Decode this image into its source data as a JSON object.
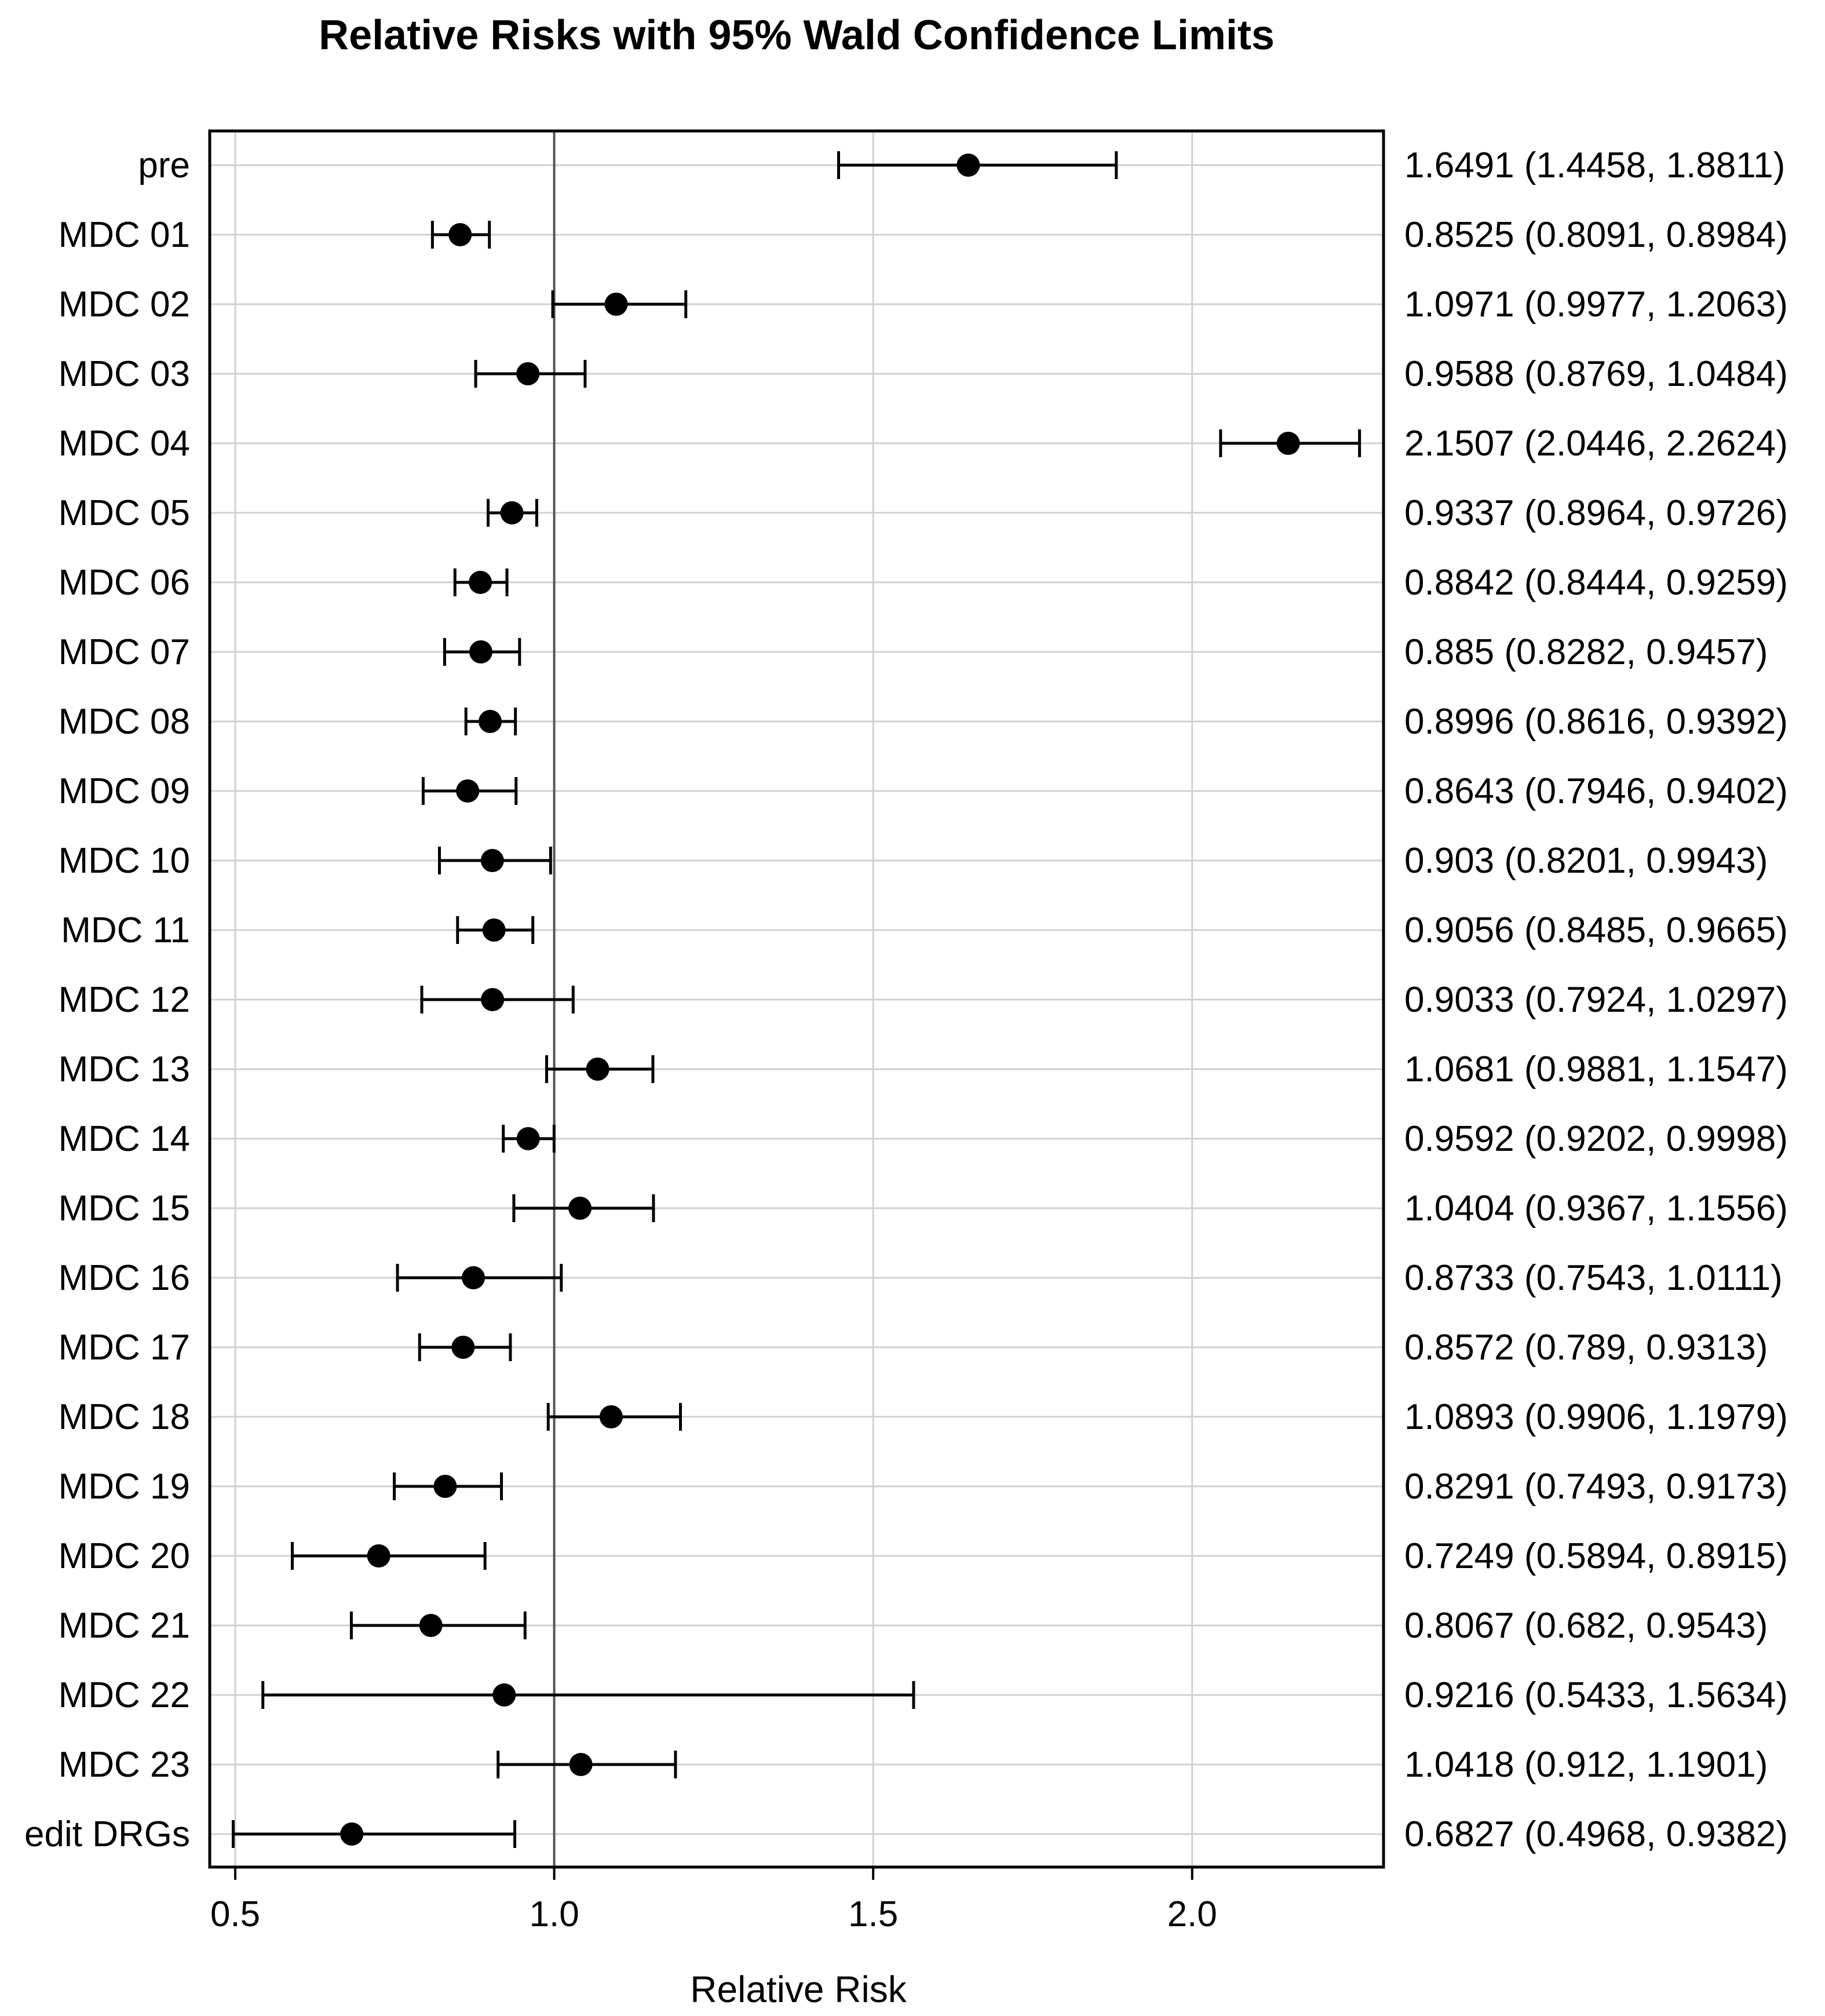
{
  "chart_data": {
    "type": "forest",
    "title": "Relative Risks with 95% Wald Confidence Limits",
    "xlabel": "Relative Risk",
    "ylabel": "",
    "xlim": [
      0.46,
      2.3
    ],
    "xticks": [
      0.5,
      1.0,
      1.5,
      2.0
    ],
    "xtick_labels": [
      "0.5",
      "1.0",
      "1.5",
      "2.0"
    ],
    "reference_line": 1.0,
    "grid": true,
    "rows": [
      {
        "label": "pre",
        "estimate": 1.6491,
        "lower": 1.4458,
        "upper": 1.8811,
        "text": "1.6491 (1.4458, 1.8811)"
      },
      {
        "label": "MDC 01",
        "estimate": 0.8525,
        "lower": 0.8091,
        "upper": 0.8984,
        "text": "0.8525 (0.8091, 0.8984)"
      },
      {
        "label": "MDC 02",
        "estimate": 1.0971,
        "lower": 0.9977,
        "upper": 1.2063,
        "text": "1.0971 (0.9977, 1.2063)"
      },
      {
        "label": "MDC 03",
        "estimate": 0.9588,
        "lower": 0.8769,
        "upper": 1.0484,
        "text": "0.9588 (0.8769, 1.0484)"
      },
      {
        "label": "MDC 04",
        "estimate": 2.1507,
        "lower": 2.0446,
        "upper": 2.2624,
        "text": "2.1507 (2.0446, 2.2624)"
      },
      {
        "label": "MDC 05",
        "estimate": 0.9337,
        "lower": 0.8964,
        "upper": 0.9726,
        "text": "0.9337 (0.8964, 0.9726)"
      },
      {
        "label": "MDC 06",
        "estimate": 0.8842,
        "lower": 0.8444,
        "upper": 0.9259,
        "text": "0.8842 (0.8444, 0.9259)"
      },
      {
        "label": "MDC 07",
        "estimate": 0.885,
        "lower": 0.8282,
        "upper": 0.9457,
        "text": "0.885 (0.8282, 0.9457)"
      },
      {
        "label": "MDC 08",
        "estimate": 0.8996,
        "lower": 0.8616,
        "upper": 0.9392,
        "text": "0.8996 (0.8616, 0.9392)"
      },
      {
        "label": "MDC 09",
        "estimate": 0.8643,
        "lower": 0.7946,
        "upper": 0.9402,
        "text": "0.8643 (0.7946, 0.9402)"
      },
      {
        "label": "MDC 10",
        "estimate": 0.903,
        "lower": 0.8201,
        "upper": 0.9943,
        "text": "0.903 (0.8201, 0.9943)"
      },
      {
        "label": "MDC 11",
        "estimate": 0.9056,
        "lower": 0.8485,
        "upper": 0.9665,
        "text": "0.9056 (0.8485, 0.9665)"
      },
      {
        "label": "MDC 12",
        "estimate": 0.9033,
        "lower": 0.7924,
        "upper": 1.0297,
        "text": "0.9033 (0.7924, 1.0297)"
      },
      {
        "label": "MDC 13",
        "estimate": 1.0681,
        "lower": 0.9881,
        "upper": 1.1547,
        "text": "1.0681 (0.9881, 1.1547)"
      },
      {
        "label": "MDC 14",
        "estimate": 0.9592,
        "lower": 0.9202,
        "upper": 0.9998,
        "text": "0.9592 (0.9202, 0.9998)"
      },
      {
        "label": "MDC 15",
        "estimate": 1.0404,
        "lower": 0.9367,
        "upper": 1.1556,
        "text": "1.0404 (0.9367, 1.1556)"
      },
      {
        "label": "MDC 16",
        "estimate": 0.8733,
        "lower": 0.7543,
        "upper": 1.0111,
        "text": "0.8733 (0.7543, 1.0111)"
      },
      {
        "label": "MDC 17",
        "estimate": 0.8572,
        "lower": 0.789,
        "upper": 0.9313,
        "text": "0.8572 (0.789, 0.9313)"
      },
      {
        "label": "MDC 18",
        "estimate": 1.0893,
        "lower": 0.9906,
        "upper": 1.1979,
        "text": "1.0893 (0.9906, 1.1979)"
      },
      {
        "label": "MDC 19",
        "estimate": 0.8291,
        "lower": 0.7493,
        "upper": 0.9173,
        "text": "0.8291 (0.7493, 0.9173)"
      },
      {
        "label": "MDC 20",
        "estimate": 0.7249,
        "lower": 0.5894,
        "upper": 0.8915,
        "text": "0.7249 (0.5894, 0.8915)"
      },
      {
        "label": "MDC 21",
        "estimate": 0.8067,
        "lower": 0.682,
        "upper": 0.9543,
        "text": "0.8067 (0.682, 0.9543)"
      },
      {
        "label": "MDC 22",
        "estimate": 0.9216,
        "lower": 0.5433,
        "upper": 1.5634,
        "text": "0.9216 (0.5433, 1.5634)"
      },
      {
        "label": "MDC 23",
        "estimate": 1.0418,
        "lower": 0.912,
        "upper": 1.1901,
        "text": "1.0418 (0.912, 1.1901)"
      },
      {
        "label": "edit DRGs",
        "estimate": 0.6827,
        "lower": 0.4968,
        "upper": 0.9382,
        "text": "0.6827 (0.4968, 0.9382)"
      }
    ],
    "colors": {
      "marker": "#000000",
      "axis": "#000000",
      "grid": "#d0d0d0",
      "reference": "#555555"
    }
  }
}
